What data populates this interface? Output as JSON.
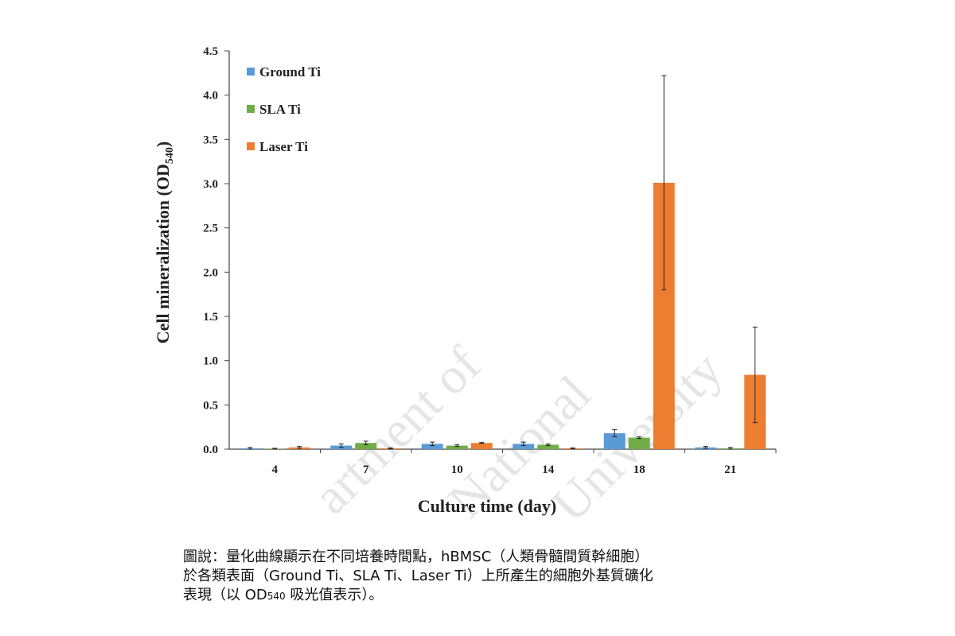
{
  "chart_data": {
    "type": "bar",
    "x_label": "Culture time (day)",
    "y_label": {
      "text": "Cell mineralization (OD",
      "subscript": "540",
      "suffix": ")"
    },
    "categories": [
      "4",
      "7",
      "10",
      "14",
      "18",
      "21"
    ],
    "series": [
      {
        "name": "Ground Ti",
        "color": "#5b9bd5",
        "values": [
          0.01,
          0.04,
          0.06,
          0.06,
          0.18,
          0.02
        ],
        "errors": [
          0.01,
          0.02,
          0.02,
          0.02,
          0.04,
          0.01
        ]
      },
      {
        "name": "SLA Ti",
        "color": "#70ad47",
        "values": [
          0.005,
          0.07,
          0.04,
          0.05,
          0.13,
          0.01
        ],
        "errors": [
          0.005,
          0.02,
          0.01,
          0.01,
          0.01,
          0.01
        ]
      },
      {
        "name": "Laser Ti",
        "color": "#ed7d31",
        "values": [
          0.02,
          0.01,
          0.07,
          0.01,
          3.01,
          0.84
        ],
        "errors": [
          0.01,
          0.005,
          0.005,
          0.005,
          1.21,
          0.54
        ]
      }
    ],
    "ylim": [
      0,
      4.5
    ],
    "yticks": [
      {
        "value": 0,
        "label": "0.0"
      },
      0.5,
      {
        "value": 1,
        "label": "1.0"
      },
      1.5,
      {
        "value": 2,
        "label": "2.0"
      },
      2.5,
      {
        "value": 3,
        "label": "3.0"
      },
      3.5,
      {
        "value": 4,
        "label": "4.0"
      },
      4.5
    ],
    "legend": "top-left",
    "grid": false
  },
  "watermark": [
    "artment of",
    "National",
    "University"
  ],
  "caption": [
    "圖說：量化曲線顯示在不同培養時間點，hBMSC（人類骨髓間質幹細胞）",
    "於各類表面（Ground Ti、SLA Ti、Laser Ti）上所產生的細胞外基質礦化",
    {
      "before": "表現（以 OD",
      "subscript": "540",
      "after": " 吸光值表示）。"
    }
  ]
}
